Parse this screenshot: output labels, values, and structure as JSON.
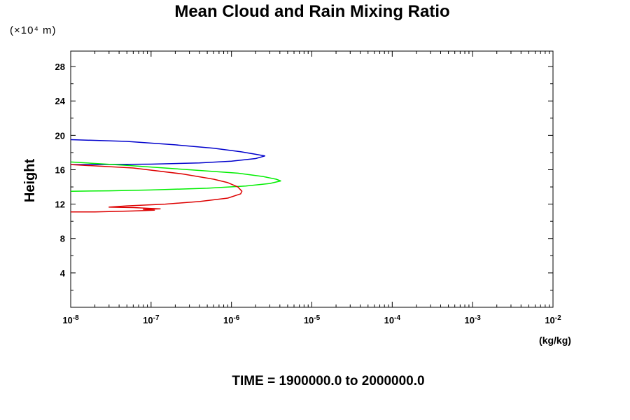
{
  "chart_data": {
    "type": "line",
    "title": "Mean Cloud and Rain Mixing Ratio",
    "ylabel": "Height",
    "y_unit": "(×10⁴ m)",
    "x_unit": "(kg/kg)",
    "footer": "TIME = 1900000.0 to 2000000.0",
    "x_scale": "log",
    "xlim": [
      1e-08,
      0.01
    ],
    "ylim": [
      0,
      29.8
    ],
    "grid": false,
    "x_ticks": [
      {
        "value": 1e-08,
        "base": "10",
        "exp": "-8"
      },
      {
        "value": 1e-07,
        "base": "10",
        "exp": "-7"
      },
      {
        "value": 1e-06,
        "base": "10",
        "exp": "-6"
      },
      {
        "value": 1e-05,
        "base": "10",
        "exp": "-5"
      },
      {
        "value": 0.0001,
        "base": "10",
        "exp": "-4"
      },
      {
        "value": 0.001,
        "base": "10",
        "exp": "-3"
      },
      {
        "value": 0.01,
        "base": "10",
        "exp": "-2"
      }
    ],
    "y_ticks": [
      4,
      8,
      12,
      16,
      20,
      24,
      28
    ],
    "y_minor_ticks": [
      2,
      6,
      10,
      14,
      18,
      22,
      26
    ],
    "series": [
      {
        "color": "#0000cc",
        "points": [
          [
            1e-08,
            19.5
          ],
          [
            5e-08,
            19.3
          ],
          [
            2e-07,
            18.9
          ],
          [
            6e-07,
            18.5
          ],
          [
            1.3e-06,
            18.1
          ],
          [
            2e-06,
            17.8
          ],
          [
            2.6e-06,
            17.6
          ],
          [
            2e-06,
            17.3
          ],
          [
            1e-06,
            17.0
          ],
          [
            4e-07,
            16.8
          ],
          [
            1e-07,
            16.65
          ],
          [
            2e-08,
            16.6
          ],
          [
            1e-08,
            16.6
          ]
        ]
      },
      {
        "color": "#00ee00",
        "points": [
          [
            1e-08,
            16.9
          ],
          [
            5e-08,
            16.5
          ],
          [
            3e-07,
            16.0
          ],
          [
            1.2e-06,
            15.6
          ],
          [
            2.5e-06,
            15.2
          ],
          [
            3.6e-06,
            14.9
          ],
          [
            4.1e-06,
            14.7
          ],
          [
            3e-06,
            14.4
          ],
          [
            1.5e-06,
            14.1
          ],
          [
            5e-07,
            13.85
          ],
          [
            1e-07,
            13.65
          ],
          [
            3e-08,
            13.55
          ],
          [
            1e-08,
            13.5
          ]
        ]
      },
      {
        "color": "#dd0000",
        "points": [
          [
            1e-08,
            16.6
          ],
          [
            6e-08,
            16.2
          ],
          [
            2.5e-07,
            15.5
          ],
          [
            6e-07,
            14.9
          ],
          [
            9e-07,
            14.5
          ],
          [
            1.2e-06,
            14.0
          ],
          [
            1.35e-06,
            13.5
          ],
          [
            1.3e-06,
            13.2
          ],
          [
            9e-07,
            12.7
          ],
          [
            4e-07,
            12.3
          ],
          [
            1.5e-07,
            12.0
          ],
          [
            5e-08,
            11.8
          ],
          [
            3e-08,
            11.65
          ],
          [
            6e-08,
            11.6
          ],
          [
            1e-07,
            11.5
          ],
          [
            1.3e-07,
            11.45
          ],
          [
            8e-08,
            11.4
          ],
          [
            1.1e-07,
            11.3
          ],
          [
            6e-08,
            11.2
          ],
          [
            2e-08,
            11.1
          ],
          [
            1e-08,
            11.1
          ]
        ]
      }
    ]
  }
}
